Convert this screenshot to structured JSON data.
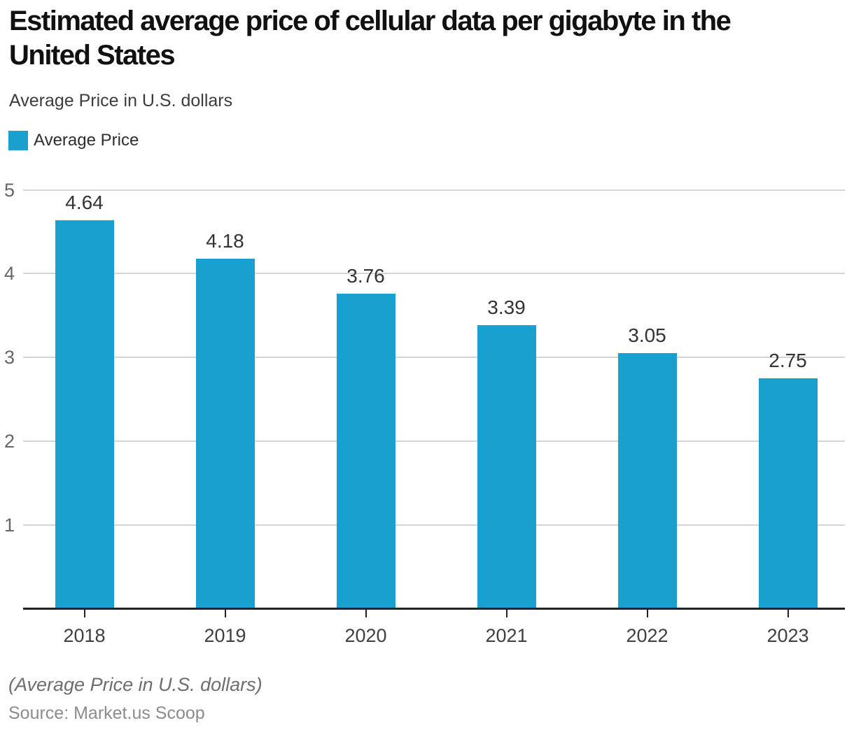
{
  "title_lines": [
    "Estimated average price of cellular data per gigabyte in the",
    "United States"
  ],
  "subtitle": "Average Price in U.S. dollars",
  "legend": {
    "label": "Average Price"
  },
  "chart_data": {
    "type": "bar",
    "title": "Estimated average price of cellular data per gigabyte in the United States",
    "subtitle": "Average Price in U.S. dollars",
    "series_name": "Average Price",
    "categories": [
      "2018",
      "2019",
      "2020",
      "2021",
      "2022",
      "2023"
    ],
    "values": [
      4.64,
      4.18,
      3.76,
      3.39,
      3.05,
      2.75
    ],
    "data_labels": [
      "4.64",
      "4.18",
      "3.76",
      "3.39",
      "3.05",
      "2.75"
    ],
    "xlabel": "",
    "ylabel": "",
    "ylim": [
      0,
      5
    ],
    "yticks": [
      "1",
      "2",
      "3",
      "4",
      "5"
    ],
    "grid": "horizontal",
    "legend_position": "top-left"
  },
  "footer": {
    "note": "(Average Price in U.S. dollars)",
    "source": "Source: Market.us Scoop"
  },
  "colors": {
    "bar": "#1aa0ce",
    "gridline": "#d5d5d5",
    "axis_line": "#222222",
    "value_label": "#333333",
    "y_label": "#666666",
    "x_label": "#3f3f3f",
    "title": "#111111"
  }
}
